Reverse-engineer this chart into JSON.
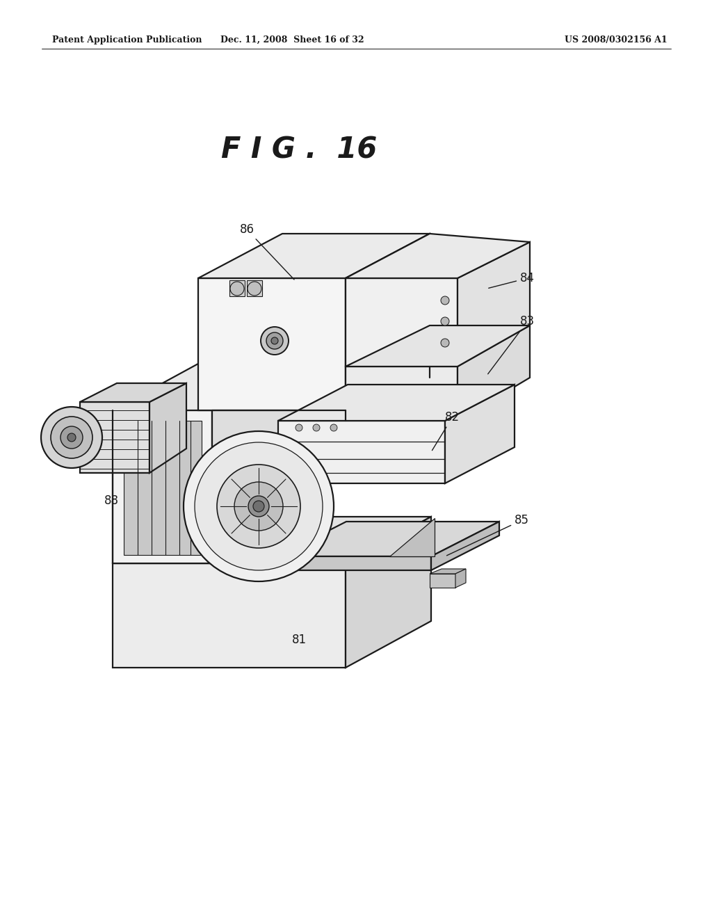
{
  "background_color": "#ffffff",
  "header_left": "Patent Application Publication",
  "header_mid": "Dec. 11, 2008  Sheet 16 of 32",
  "header_right": "US 2008/0302156 A1",
  "fig_title": "F I G .  16",
  "line_color": "#1a1a1a",
  "label_fontsize": 12,
  "title_fontsize": 30,
  "header_fontsize": 9
}
